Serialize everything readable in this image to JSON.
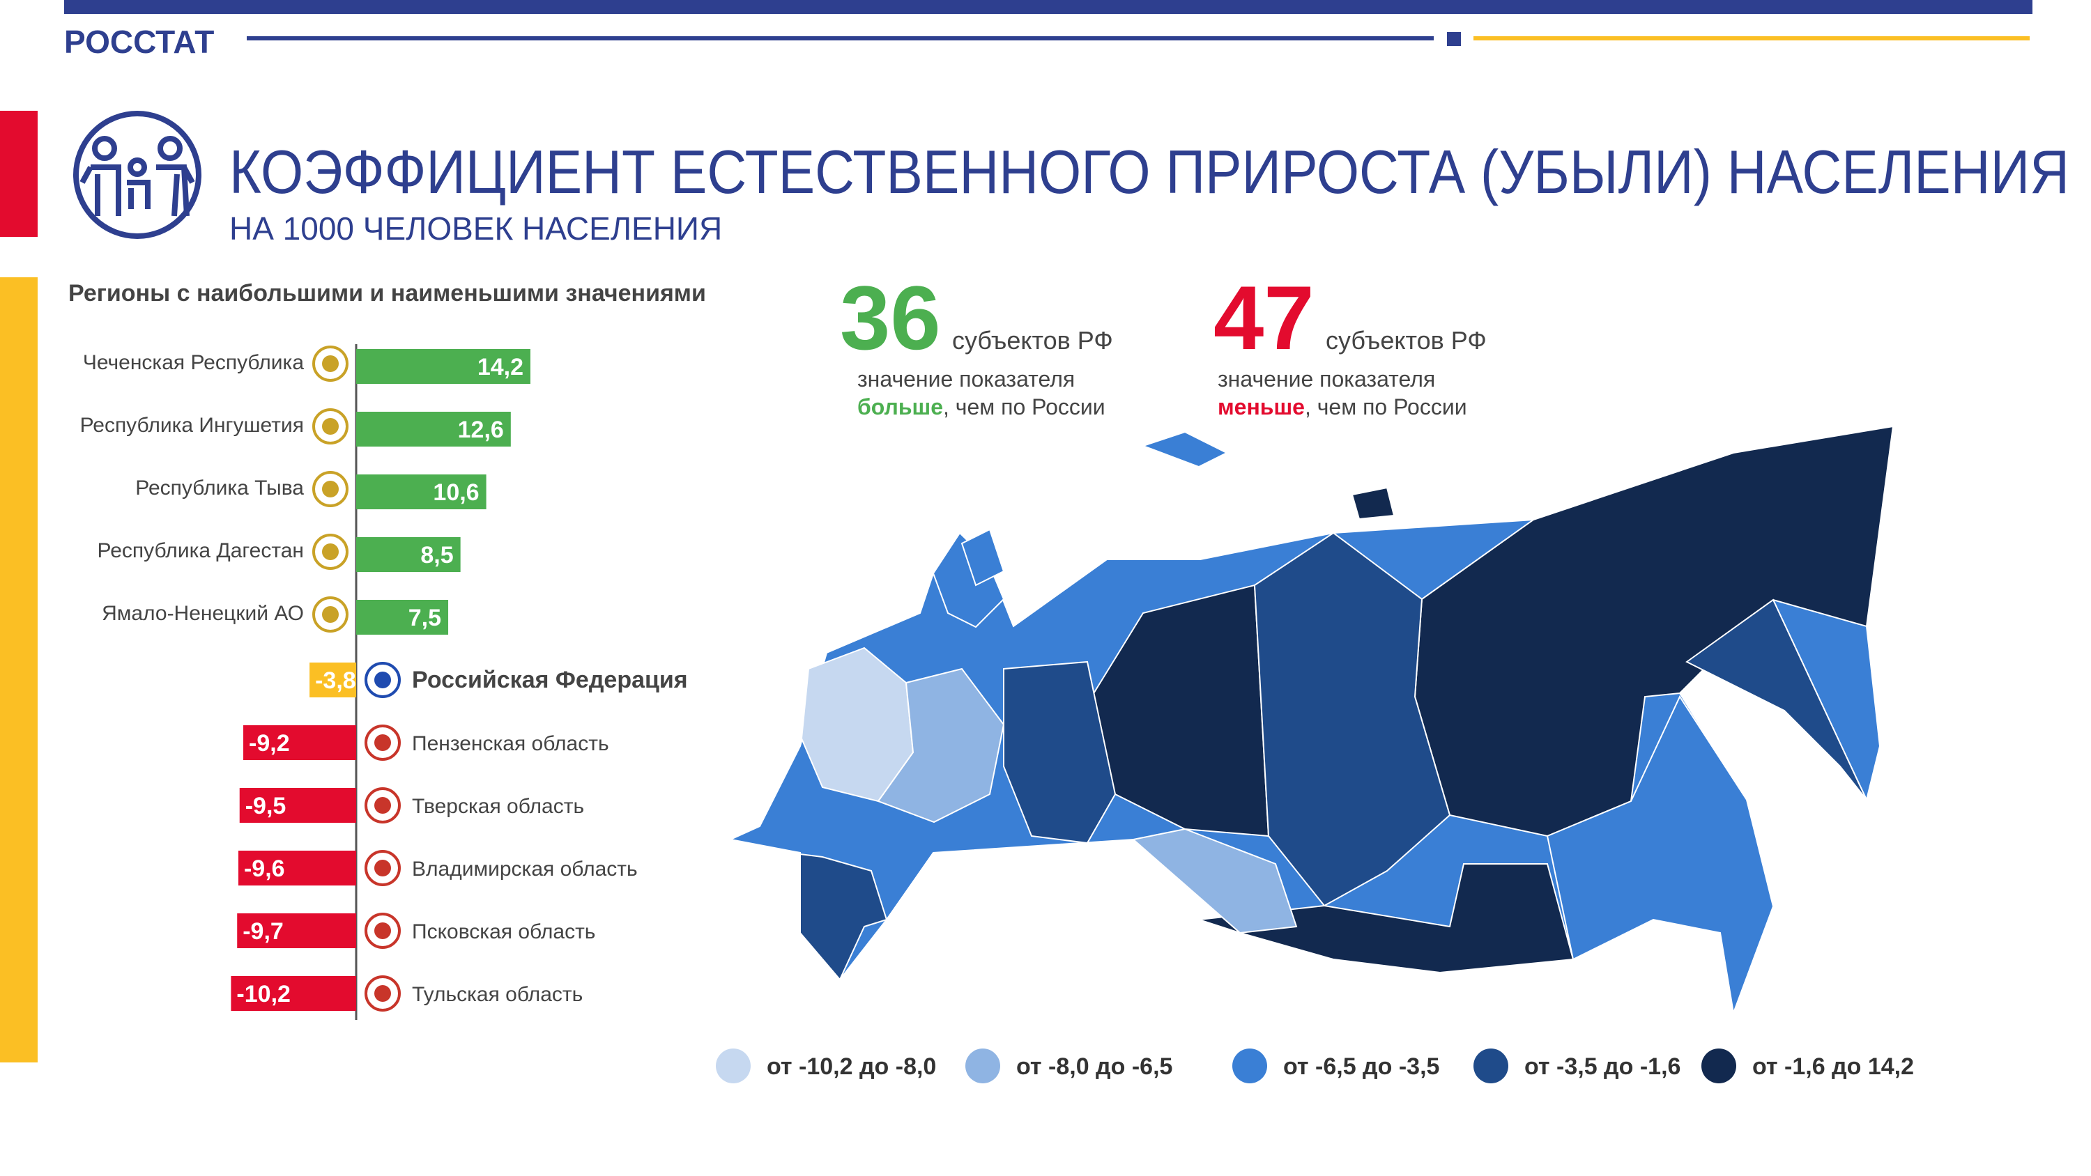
{
  "header": {
    "org": "РОССТАТ",
    "title": "КОЭФФИЦИЕНТ ЕСТЕСТВЕННОГО ПРИРОСТА (УБЫЛИ) НАСЕЛЕНИЯ",
    "subtitle": "НА 1000 ЧЕЛОВЕК НАСЕЛЕНИЯ"
  },
  "chart_data": {
    "type": "bar",
    "orientation": "horizontal",
    "title": "Регионы с наибольшими и наименьшими значениями",
    "categories": [
      "Чеченская Республика",
      "Республика Ингушетия",
      "Республика Тыва",
      "Республика Дагестан",
      "Ямало-Ненецкий АО",
      "Пензенская область",
      "Тверская область",
      "Владимирская область",
      "Псковская область",
      "Тульская область"
    ],
    "values": [
      14.2,
      12.6,
      10.6,
      8.5,
      7.5,
      -9.2,
      -9.5,
      -9.6,
      -9.7,
      -10.2
    ],
    "value_labels": [
      "14,2",
      "12,6",
      "10,6",
      "8,5",
      "7,5",
      "-9,2",
      "-9,5",
      "-9,6",
      "-9,7",
      "-10,2"
    ],
    "reference": {
      "category": "Российская Федерация",
      "value": -3.8,
      "value_label": "-3,8"
    },
    "colors": {
      "positive": "#4caf50",
      "negative": "#e30b2e",
      "reference": "#fbbf24"
    }
  },
  "stats": [
    {
      "number": 36,
      "unit": "субъектов РФ",
      "line1": "значение показателя",
      "emphasis": "больше",
      "rest": ", чем по России",
      "color": "#4caf50"
    },
    {
      "number": 47,
      "unit": "субъектов РФ",
      "line1": "значение показателя",
      "emphasis": "меньше",
      "rest": ", чем по России",
      "color": "#e30b2e"
    }
  ],
  "map_legend": [
    {
      "label": "от -10,2 до -8,0",
      "color": "#c6d8f0"
    },
    {
      "label": "от -8,0 до -6,5",
      "color": "#8fb4e3"
    },
    {
      "label": "от -6,5 до -3,5",
      "color": "#3a7fd5"
    },
    {
      "label": "от -3,5 до -1,6",
      "color": "#1f4b8a"
    },
    {
      "label": "от -1,6 до 14,2",
      "color": "#12294f"
    }
  ]
}
